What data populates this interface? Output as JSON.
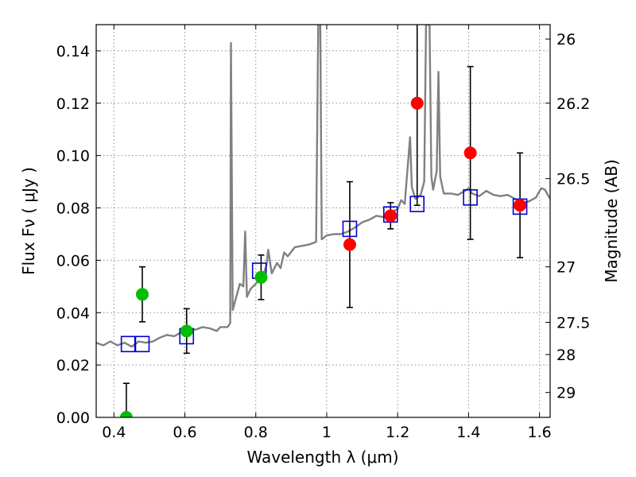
{
  "chart_data": {
    "type": "scatter",
    "title": "",
    "xlabel": "Wavelength  λ (μm)",
    "ylabel": "Flux  Fν  ( μJy )",
    "ylabel_right": "Magnitude (AB)",
    "xlim": [
      0.35,
      1.63
    ],
    "ylim": [
      0.0,
      0.15
    ],
    "grid": true,
    "x_ticks": [
      0.4,
      0.6,
      0.8,
      1.0,
      1.2,
      1.4,
      1.6
    ],
    "x_tick_labels": [
      "0.4",
      "0.6",
      "0.8",
      "1",
      "1.2",
      "1.4",
      "1.6"
    ],
    "y_ticks": [
      0.0,
      0.02,
      0.04,
      0.06,
      0.08,
      0.1,
      0.12,
      0.14
    ],
    "y_tick_labels": [
      "0.00",
      "0.02",
      "0.04",
      "0.06",
      "0.08",
      "0.10",
      "0.12",
      "0.14"
    ],
    "right_ticks": [
      {
        "flux": 0.1445,
        "label": "26"
      },
      {
        "flux": 0.12,
        "label": "26.2"
      },
      {
        "flux": 0.0912,
        "label": "26.5"
      },
      {
        "flux": 0.0575,
        "label": "27"
      },
      {
        "flux": 0.0363,
        "label": "27.5"
      },
      {
        "flux": 0.024,
        "label": "28"
      },
      {
        "flux": 0.0095,
        "label": "29"
      }
    ],
    "colors": {
      "spectrum": "#808080",
      "green": "#00bf00",
      "red": "#ff0000",
      "model": "#0000cc",
      "errorbar": "#000000",
      "grid": "#8c8c8c"
    },
    "series": [
      {
        "name": "Green photometry",
        "marker": "circle",
        "points": [
          {
            "x": 0.435,
            "y": 0.0,
            "err": 0.013
          },
          {
            "x": 0.48,
            "y": 0.047,
            "err": 0.0105
          },
          {
            "x": 0.605,
            "y": 0.033,
            "err": 0.0085
          },
          {
            "x": 0.815,
            "y": 0.0535,
            "err": 0.0085
          }
        ]
      },
      {
        "name": "Red photometry",
        "marker": "circle",
        "points": [
          {
            "x": 1.065,
            "y": 0.066,
            "err": 0.024
          },
          {
            "x": 1.18,
            "y": 0.077,
            "err": 0.005
          },
          {
            "x": 1.255,
            "y": 0.12,
            "err": 0.039
          },
          {
            "x": 1.405,
            "y": 0.101,
            "err": 0.033
          },
          {
            "x": 1.545,
            "y": 0.081,
            "err": 0.02
          }
        ]
      },
      {
        "name": "Model synthetic photometry",
        "marker": "square",
        "points": [
          {
            "x": 0.44,
            "y": 0.028
          },
          {
            "x": 0.48,
            "y": 0.028
          },
          {
            "x": 0.605,
            "y": 0.031
          },
          {
            "x": 0.81,
            "y": 0.056
          },
          {
            "x": 1.065,
            "y": 0.072
          },
          {
            "x": 1.18,
            "y": 0.0775
          },
          {
            "x": 1.255,
            "y": 0.0815
          },
          {
            "x": 1.405,
            "y": 0.084
          },
          {
            "x": 1.545,
            "y": 0.0805
          }
        ]
      },
      {
        "name": "Model spectrum",
        "marker": "line",
        "points": [
          {
            "x": 0.35,
            "y": 0.0285
          },
          {
            "x": 0.37,
            "y": 0.0275
          },
          {
            "x": 0.39,
            "y": 0.029
          },
          {
            "x": 0.41,
            "y": 0.0275
          },
          {
            "x": 0.43,
            "y": 0.0285
          },
          {
            "x": 0.45,
            "y": 0.027
          },
          {
            "x": 0.47,
            "y": 0.029
          },
          {
            "x": 0.49,
            "y": 0.0285
          },
          {
            "x": 0.51,
            "y": 0.029
          },
          {
            "x": 0.53,
            "y": 0.0305
          },
          {
            "x": 0.55,
            "y": 0.0315
          },
          {
            "x": 0.57,
            "y": 0.031
          },
          {
            "x": 0.59,
            "y": 0.0325
          },
          {
            "x": 0.61,
            "y": 0.034
          },
          {
            "x": 0.63,
            "y": 0.0335
          },
          {
            "x": 0.65,
            "y": 0.0345
          },
          {
            "x": 0.67,
            "y": 0.034
          },
          {
            "x": 0.69,
            "y": 0.033
          },
          {
            "x": 0.7,
            "y": 0.0345
          },
          {
            "x": 0.72,
            "y": 0.0345
          },
          {
            "x": 0.728,
            "y": 0.036
          },
          {
            "x": 0.73,
            "y": 0.143
          },
          {
            "x": 0.735,
            "y": 0.041
          },
          {
            "x": 0.745,
            "y": 0.046
          },
          {
            "x": 0.755,
            "y": 0.051
          },
          {
            "x": 0.765,
            "y": 0.05
          },
          {
            "x": 0.77,
            "y": 0.071
          },
          {
            "x": 0.775,
            "y": 0.046
          },
          {
            "x": 0.785,
            "y": 0.049
          },
          {
            "x": 0.8,
            "y": 0.051
          },
          {
            "x": 0.82,
            "y": 0.054
          },
          {
            "x": 0.83,
            "y": 0.058
          },
          {
            "x": 0.835,
            "y": 0.064
          },
          {
            "x": 0.845,
            "y": 0.055
          },
          {
            "x": 0.86,
            "y": 0.059
          },
          {
            "x": 0.87,
            "y": 0.057
          },
          {
            "x": 0.88,
            "y": 0.063
          },
          {
            "x": 0.89,
            "y": 0.0615
          },
          {
            "x": 0.91,
            "y": 0.065
          },
          {
            "x": 0.93,
            "y": 0.0655
          },
          {
            "x": 0.95,
            "y": 0.066
          },
          {
            "x": 0.97,
            "y": 0.067
          },
          {
            "x": 0.976,
            "y": 0.15
          },
          {
            "x": 0.982,
            "y": 0.15
          },
          {
            "x": 0.986,
            "y": 0.068
          },
          {
            "x": 1.0,
            "y": 0.0695
          },
          {
            "x": 1.02,
            "y": 0.07
          },
          {
            "x": 1.04,
            "y": 0.07
          },
          {
            "x": 1.06,
            "y": 0.071
          },
          {
            "x": 1.08,
            "y": 0.0725
          },
          {
            "x": 1.1,
            "y": 0.0745
          },
          {
            "x": 1.12,
            "y": 0.0755
          },
          {
            "x": 1.14,
            "y": 0.077
          },
          {
            "x": 1.16,
            "y": 0.0765
          },
          {
            "x": 1.18,
            "y": 0.0785
          },
          {
            "x": 1.2,
            "y": 0.0795
          },
          {
            "x": 1.21,
            "y": 0.083
          },
          {
            "x": 1.22,
            "y": 0.0815
          },
          {
            "x": 1.235,
            "y": 0.107
          },
          {
            "x": 1.24,
            "y": 0.088
          },
          {
            "x": 1.25,
            "y": 0.0835
          },
          {
            "x": 1.265,
            "y": 0.085
          },
          {
            "x": 1.275,
            "y": 0.09
          },
          {
            "x": 1.28,
            "y": 0.15
          },
          {
            "x": 1.29,
            "y": 0.15
          },
          {
            "x": 1.295,
            "y": 0.092
          },
          {
            "x": 1.3,
            "y": 0.087
          },
          {
            "x": 1.31,
            "y": 0.094
          },
          {
            "x": 1.315,
            "y": 0.132
          },
          {
            "x": 1.32,
            "y": 0.092
          },
          {
            "x": 1.33,
            "y": 0.0855
          },
          {
            "x": 1.35,
            "y": 0.0855
          },
          {
            "x": 1.37,
            "y": 0.085
          },
          {
            "x": 1.39,
            "y": 0.0865
          },
          {
            "x": 1.4,
            "y": 0.0875
          },
          {
            "x": 1.41,
            "y": 0.0855
          },
          {
            "x": 1.43,
            "y": 0.0845
          },
          {
            "x": 1.45,
            "y": 0.0865
          },
          {
            "x": 1.47,
            "y": 0.085
          },
          {
            "x": 1.49,
            "y": 0.0845
          },
          {
            "x": 1.51,
            "y": 0.085
          },
          {
            "x": 1.53,
            "y": 0.0835
          },
          {
            "x": 1.55,
            "y": 0.082
          },
          {
            "x": 1.57,
            "y": 0.0825
          },
          {
            "x": 1.59,
            "y": 0.084
          },
          {
            "x": 1.605,
            "y": 0.0875
          },
          {
            "x": 1.615,
            "y": 0.087
          },
          {
            "x": 1.63,
            "y": 0.0835
          }
        ]
      }
    ]
  }
}
